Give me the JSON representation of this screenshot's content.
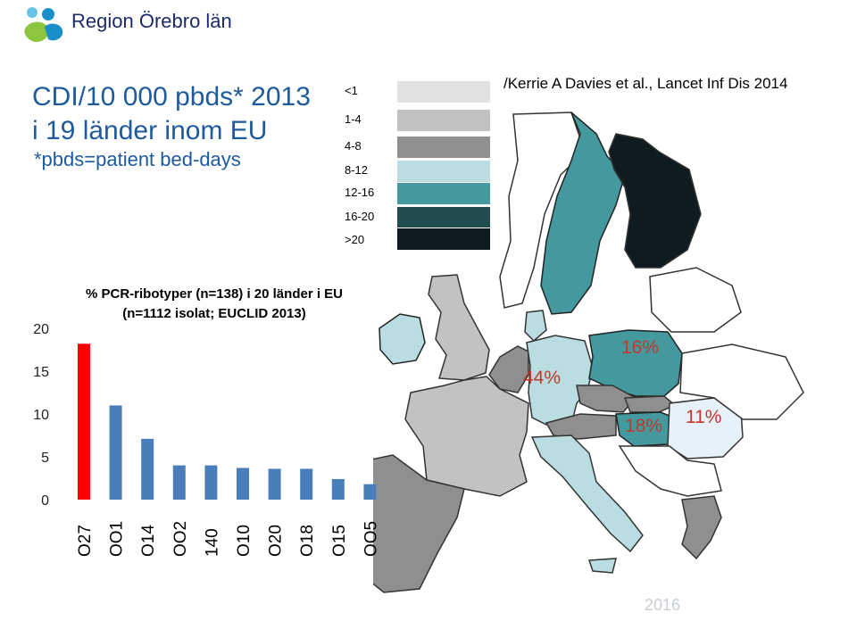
{
  "header": {
    "organization": "Region Örebro län"
  },
  "slide": {
    "title_line1": "CDI/10 000 pbds* 2013",
    "title_line2": "i 19 länder inom EU",
    "subtitle": "*pbds=patient bed-days",
    "reference": "/Kerrie A Davies et al., Lancet Inf Dis 2014",
    "footer_year": "2016"
  },
  "map_legend": {
    "items": [
      {
        "label": "<1",
        "color": "#e2e2e2"
      },
      {
        "label": "1-4",
        "color": "#c2c2c2"
      },
      {
        "label": "4-8",
        "color": "#8f8f8f"
      },
      {
        "label": "8-12",
        "color": "#b9dde0"
      },
      {
        "label": "12-16",
        "color": "#43999e"
      },
      {
        "label": "16-20",
        "color": "#214d51"
      },
      {
        "label": ">20",
        "color": "#0f1c1f"
      }
    ]
  },
  "map_annotations": [
    {
      "label": "44%",
      "color": "#c0392b"
    },
    {
      "label": "16%",
      "color": "#c0392b"
    },
    {
      "label": "18%",
      "color": "#c0392b"
    },
    {
      "label": "11%",
      "color": "#c0392b"
    }
  ],
  "chart_data": {
    "type": "bar",
    "title": "% PCR-ribotyper (n=138) i 20 länder i EU",
    "subtitle": "(n=1112 isolat; EUCLID 2013)",
    "categories": [
      "O27",
      "OO1",
      "O14",
      "OO2",
      "140",
      "O10",
      "O20",
      "O18",
      "O15",
      "OO5"
    ],
    "values": [
      18.2,
      11.0,
      7.1,
      4.0,
      4.0,
      3.7,
      3.6,
      3.6,
      2.4,
      1.8
    ],
    "colors": [
      "#ff0000",
      "#4a7ebb",
      "#4a7ebb",
      "#4a7ebb",
      "#4a7ebb",
      "#4a7ebb",
      "#4a7ebb",
      "#4a7ebb",
      "#4a7ebb",
      "#4a7ebb"
    ],
    "ylim": [
      0,
      20
    ],
    "yticks": [
      0,
      5,
      10,
      15,
      20
    ],
    "grid": false
  }
}
